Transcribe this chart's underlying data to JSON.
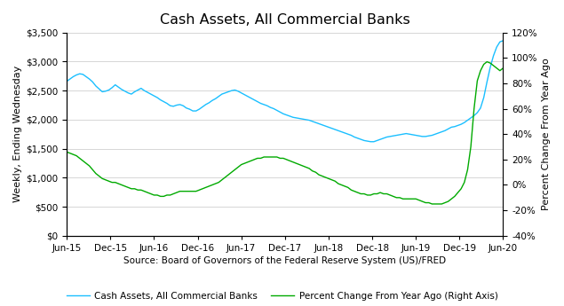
{
  "title": "Cash Assets, All Commercial Banks",
  "ylabel_left": "Weekly, Ending Wednesday",
  "ylabel_right": "Percent Change From Year Ago",
  "xlabel": "Source: Board of Governors of the Federal Reserve System (US)/FRED",
  "legend_blue": "Cash Assets, All Commercial Banks",
  "legend_green": "Percent Change From Year Ago (Right Axis)",
  "color_blue": "#1ABFFF",
  "color_green": "#00AA00",
  "ylim_left": [
    0,
    3500
  ],
  "ylim_right": [
    -40,
    120
  ],
  "yticks_left": [
    0,
    500,
    1000,
    1500,
    2000,
    2500,
    3000,
    3500
  ],
  "yticks_right": [
    -40,
    -20,
    0,
    20,
    40,
    60,
    80,
    100,
    120
  ],
  "background_color": "#ffffff",
  "grid_color": "#d0d0d0",
  "cash_assets": [
    2660,
    2700,
    2740,
    2770,
    2790,
    2780,
    2740,
    2700,
    2650,
    2580,
    2530,
    2480,
    2490,
    2510,
    2550,
    2600,
    2560,
    2520,
    2490,
    2460,
    2440,
    2480,
    2510,
    2540,
    2500,
    2470,
    2440,
    2410,
    2380,
    2340,
    2310,
    2280,
    2240,
    2230,
    2250,
    2260,
    2240,
    2200,
    2180,
    2150,
    2150,
    2180,
    2220,
    2260,
    2290,
    2330,
    2360,
    2400,
    2440,
    2460,
    2480,
    2500,
    2510,
    2490,
    2460,
    2430,
    2400,
    2370,
    2340,
    2310,
    2280,
    2260,
    2240,
    2210,
    2190,
    2160,
    2130,
    2100,
    2080,
    2060,
    2040,
    2030,
    2020,
    2010,
    2000,
    1990,
    1970,
    1950,
    1930,
    1910,
    1890,
    1870,
    1850,
    1830,
    1810,
    1790,
    1770,
    1750,
    1730,
    1700,
    1680,
    1660,
    1640,
    1630,
    1620,
    1620,
    1640,
    1660,
    1680,
    1700,
    1710,
    1720,
    1730,
    1740,
    1750,
    1760,
    1750,
    1740,
    1730,
    1720,
    1710,
    1710,
    1720,
    1730,
    1750,
    1770,
    1790,
    1810,
    1840,
    1870,
    1880,
    1900,
    1920,
    1950,
    1990,
    2030,
    2070,
    2120,
    2200,
    2380,
    2650,
    2900,
    3100,
    3250,
    3340,
    3360
  ],
  "pct_change": [
    26,
    25,
    24,
    23,
    21,
    19,
    17,
    15,
    12,
    9,
    7,
    5,
    4,
    3,
    2,
    2,
    1,
    0,
    -1,
    -2,
    -3,
    -3,
    -4,
    -4,
    -5,
    -6,
    -7,
    -8,
    -8,
    -9,
    -9,
    -8,
    -8,
    -7,
    -6,
    -5,
    -5,
    -5,
    -5,
    -5,
    -5,
    -4,
    -3,
    -2,
    -1,
    0,
    1,
    2,
    4,
    6,
    8,
    10,
    12,
    14,
    16,
    17,
    18,
    19,
    20,
    21,
    21,
    22,
    22,
    22,
    22,
    22,
    21,
    21,
    20,
    19,
    18,
    17,
    16,
    15,
    14,
    13,
    11,
    10,
    8,
    7,
    6,
    5,
    4,
    3,
    1,
    0,
    -1,
    -2,
    -4,
    -5,
    -6,
    -7,
    -7,
    -8,
    -8,
    -7,
    -7,
    -6,
    -7,
    -7,
    -8,
    -9,
    -10,
    -10,
    -11,
    -11,
    -11,
    -11,
    -11,
    -12,
    -13,
    -14,
    -14,
    -15,
    -15,
    -15,
    -15,
    -14,
    -13,
    -11,
    -9,
    -6,
    -3,
    2,
    12,
    30,
    60,
    82,
    90,
    95,
    97,
    96,
    94,
    92,
    90,
    92
  ],
  "xtick_labels": [
    "Jun-15",
    "Dec-15",
    "Jun-16",
    "Dec-16",
    "Jun-17",
    "Dec-17",
    "Jun-18",
    "Dec-18",
    "Jun-19",
    "Dec-19",
    "Jun-20"
  ],
  "n_ticks": 11
}
